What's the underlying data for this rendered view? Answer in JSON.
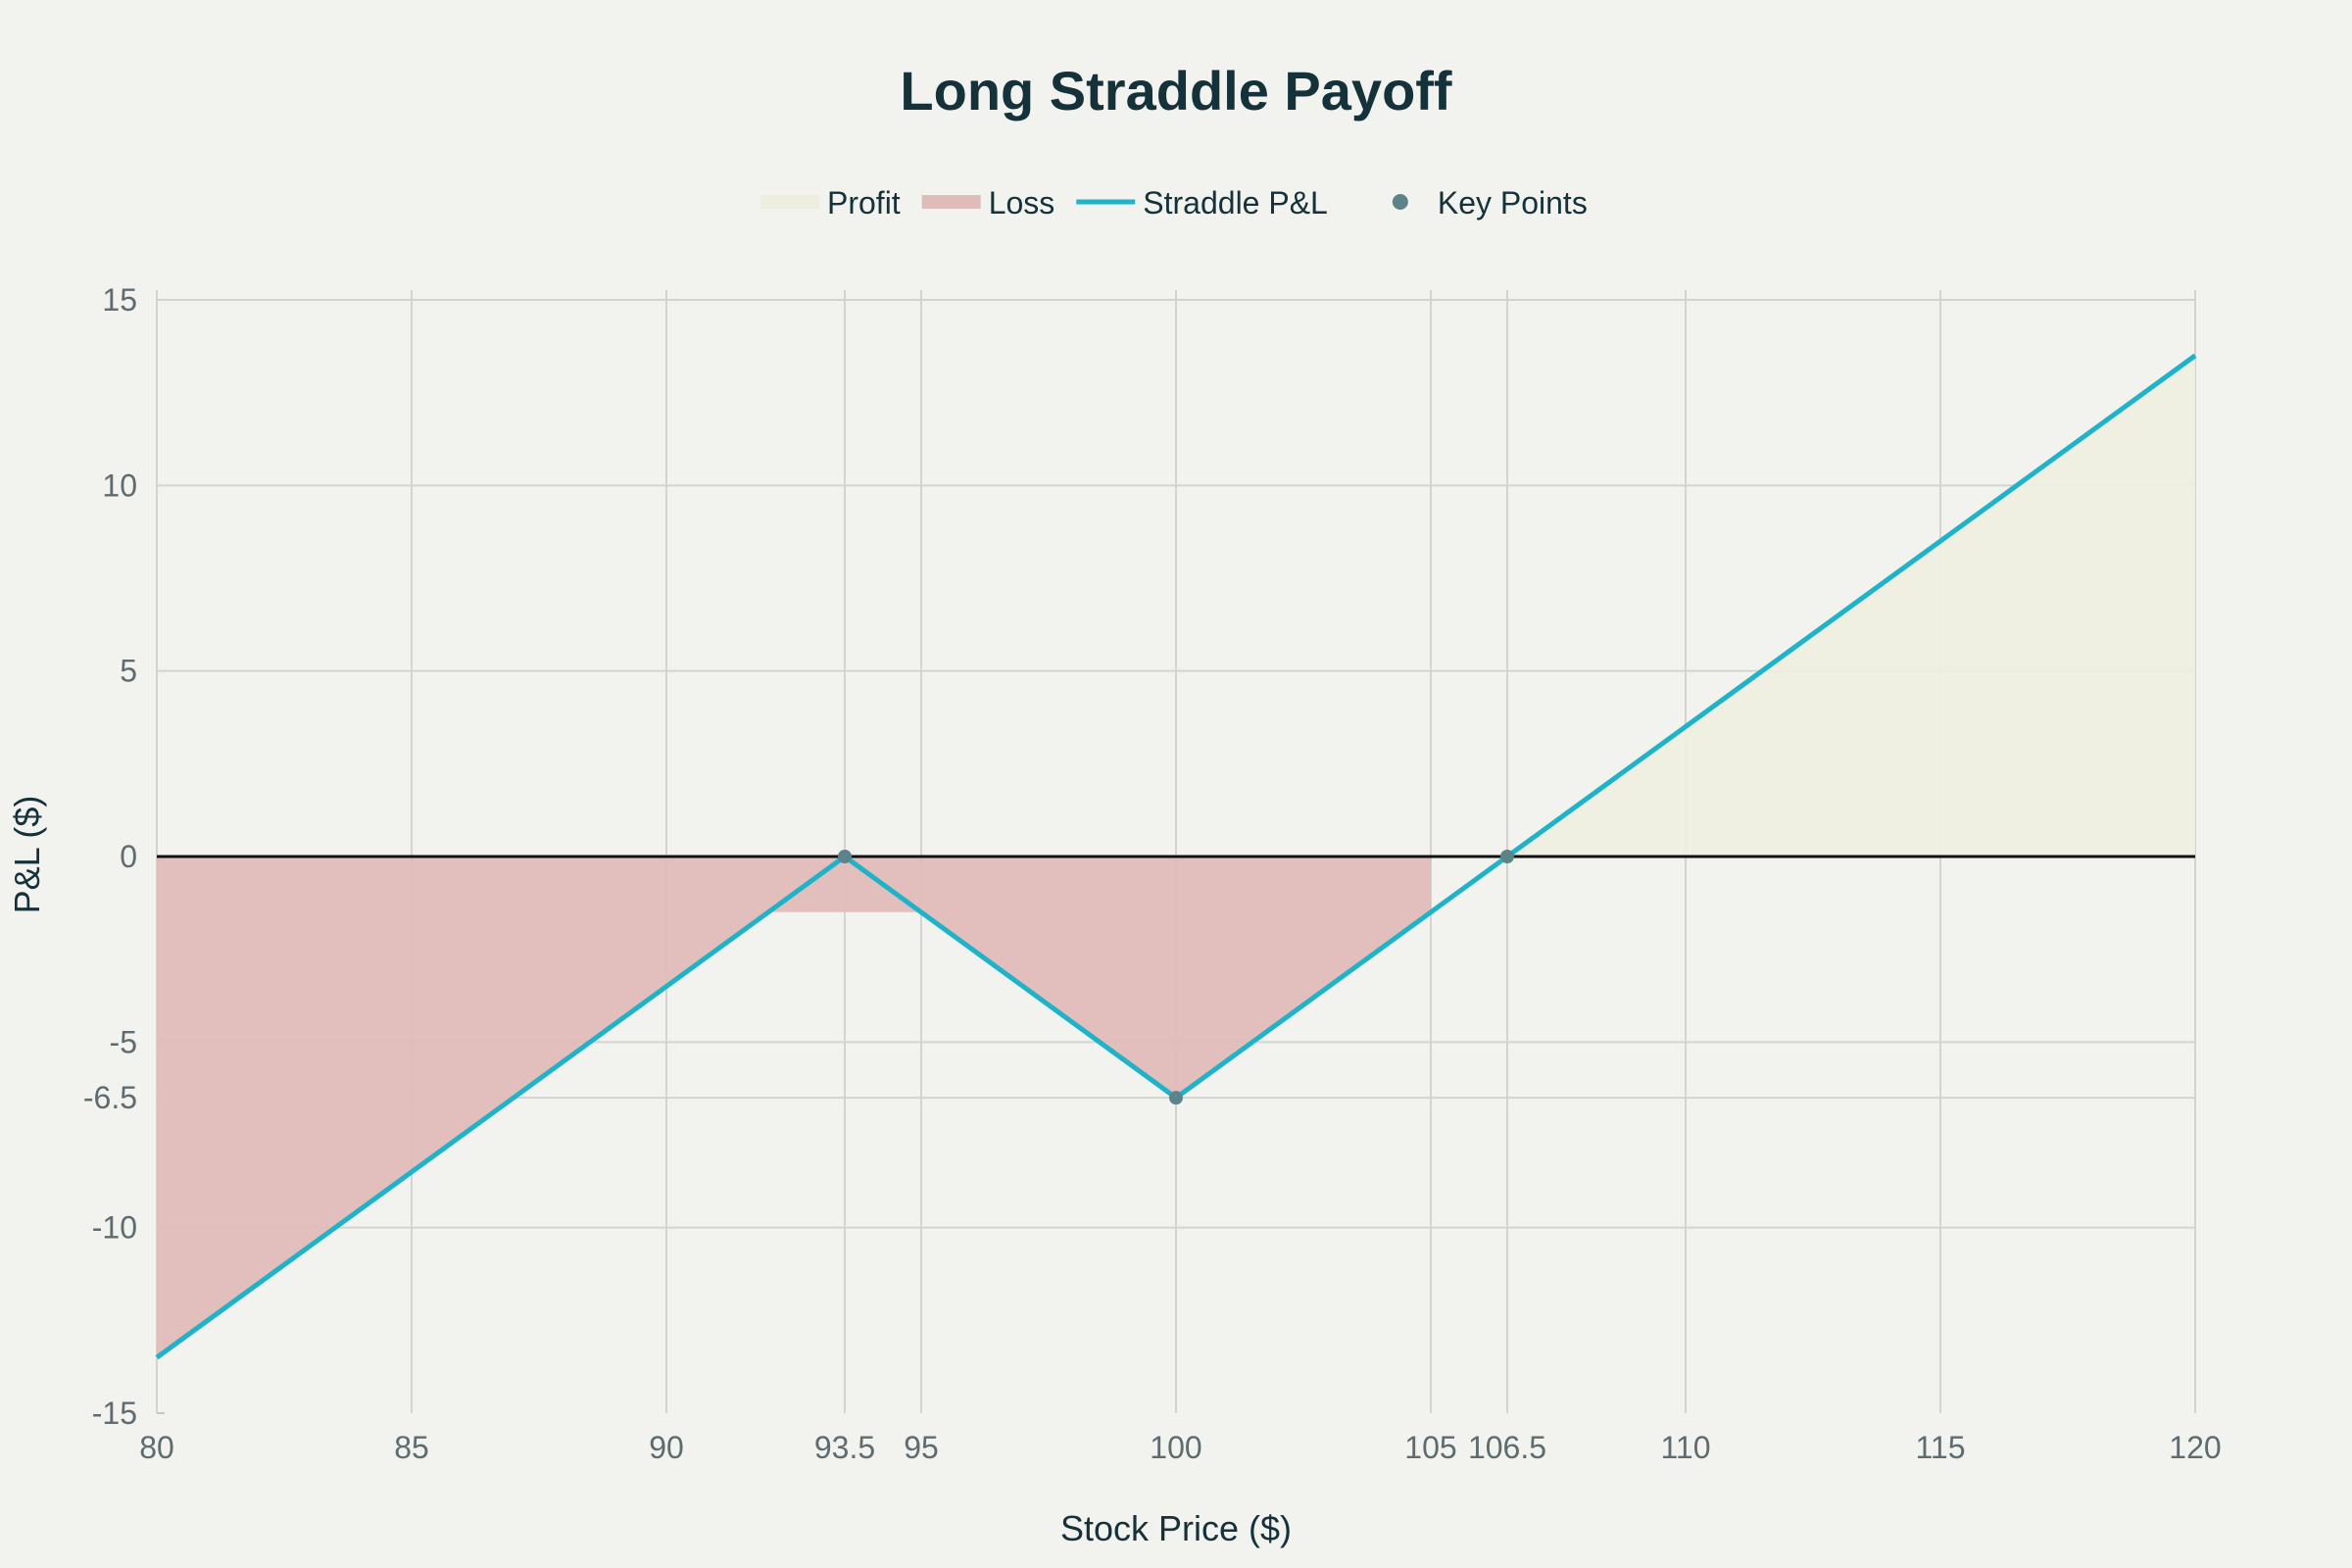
{
  "chart_data": {
    "type": "line",
    "title": "Long Straddle Payoff",
    "xlabel": "Stock Price ($)",
    "ylabel": "P&L ($)",
    "xlim": [
      80,
      120
    ],
    "ylim": [
      -15,
      15
    ],
    "x_ticks": [
      80,
      85,
      90,
      93.5,
      95,
      100,
      105,
      106.5,
      110,
      115,
      120
    ],
    "y_ticks": [
      -15,
      -10,
      -6.5,
      -5,
      0,
      5,
      10,
      15
    ],
    "grid": true,
    "legend_position": "top-center",
    "series": [
      {
        "name": "Profit",
        "kind": "area",
        "color": "#eeeee0",
        "points": [
          [
            106.5,
            0
          ],
          [
            120,
            13.5
          ]
        ]
      },
      {
        "name": "Loss",
        "kind": "area",
        "color": "#e0bcb8",
        "regions": [
          [
            [
              80,
              0
            ],
            [
              93.5,
              0
            ],
            [
              93.5,
              -1.5
            ],
            [
              92,
              -1.5
            ],
            [
              80,
              -13.5
            ]
          ],
          [
            [
              93.5,
              0
            ],
            [
              105,
              0
            ],
            [
              105,
              -1.5
            ],
            [
              100,
              -6.5
            ],
            [
              95,
              -1.5
            ],
            [
              93.5,
              -1.5
            ]
          ]
        ]
      },
      {
        "name": "Straddle P&L",
        "kind": "line",
        "color": "#1fb3c9",
        "points": [
          [
            80,
            -13.5
          ],
          [
            93.5,
            0
          ],
          [
            100,
            -6.5
          ],
          [
            106.5,
            0
          ],
          [
            120,
            13.5
          ]
        ]
      },
      {
        "name": "Key Points",
        "kind": "scatter",
        "color": "#5c8488",
        "points": [
          [
            93.5,
            0
          ],
          [
            100,
            -6.5
          ],
          [
            106.5,
            0
          ]
        ]
      }
    ]
  }
}
